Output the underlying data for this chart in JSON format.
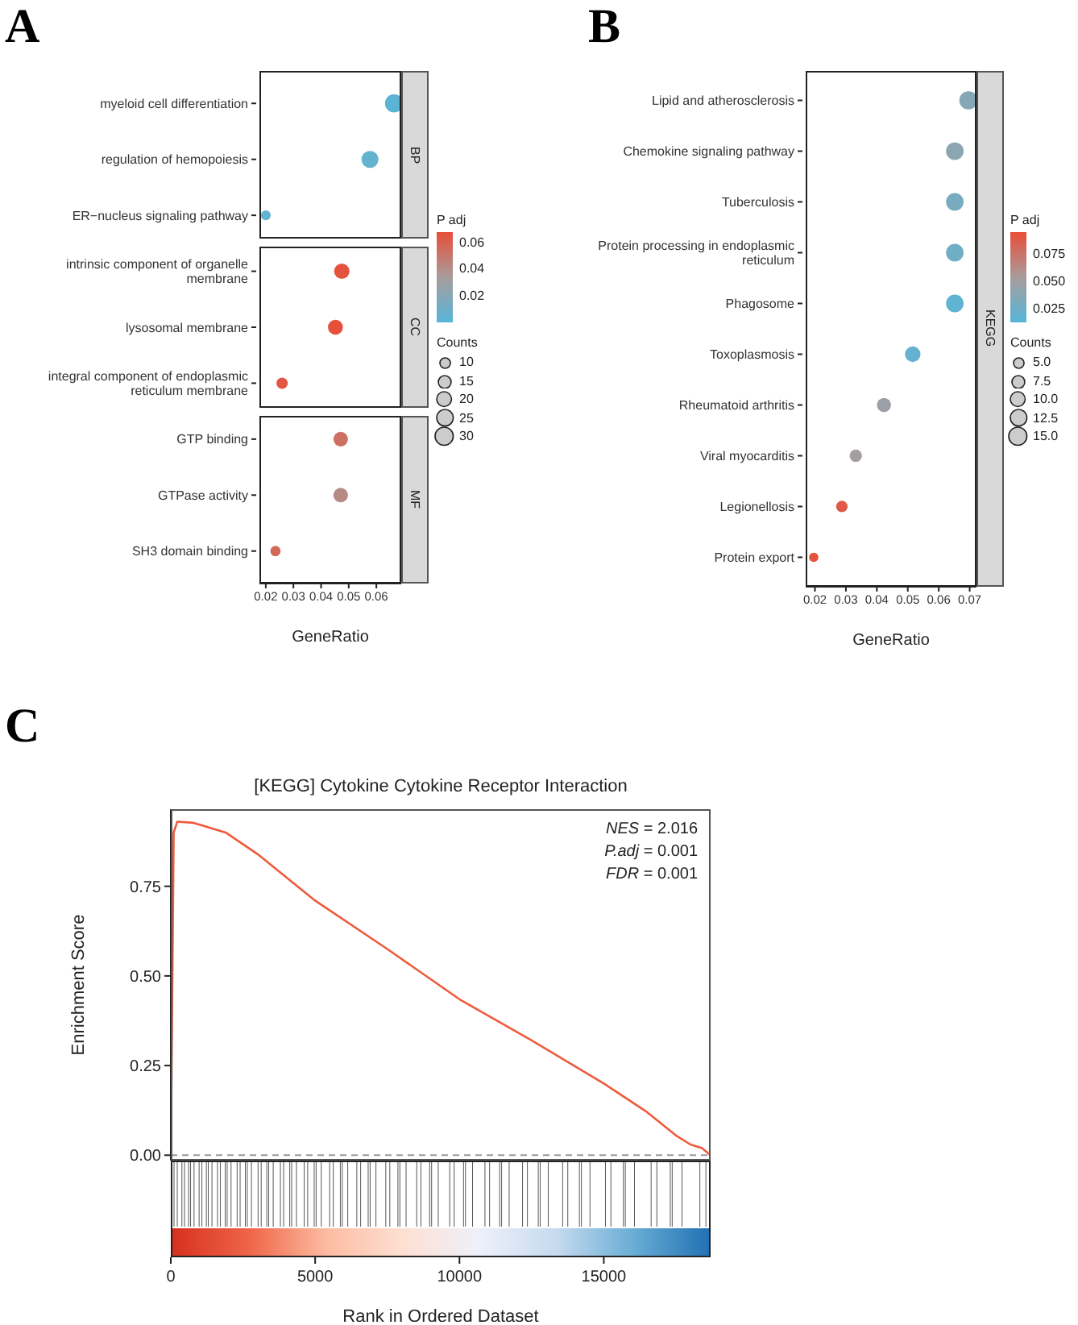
{
  "chart_data": [
    {
      "type": "scatter",
      "orientation": "horizontal",
      "annotations": [
        "A",
        "BP",
        "CC",
        "MF"
      ],
      "categories": [
        "myeloid cell differentiation",
        "regulation of hemopoiesis",
        "ER−nucleus signaling pathway",
        "intrinsic component of organelle membrane",
        "lysosomal membrane",
        "integral component of endoplasmic reticulum membrane",
        "GTP binding",
        "GTPase activity",
        "SH3 domain binding"
      ],
      "values": [
        0.0664,
        0.0577,
        0.02,
        0.0475,
        0.0452,
        0.0259,
        0.0471,
        0.0471,
        0.0235
      ],
      "sizes": [
        31,
        27,
        9,
        22,
        21,
        12,
        20,
        20,
        10
      ],
      "cvalues": [
        0.003,
        0.006,
        0.005,
        0.066,
        0.067,
        0.064,
        0.054,
        0.042,
        0.057
      ],
      "xlim": [
        0.0177,
        0.069
      ],
      "xticks": [
        0.02,
        0.03,
        0.04,
        0.05,
        0.06
      ],
      "xlabel": "GeneRatio",
      "clabel": "P adj",
      "clim": [
        0.001,
        0.068
      ],
      "cticks": [
        0.02,
        0.04,
        0.06
      ],
      "legend_title": "Counts",
      "size_legend": [
        10,
        15,
        20,
        25,
        30
      ]
    },
    {
      "type": "scatter",
      "orientation": "horizontal",
      "title": "KEGG",
      "annotations": [
        "B"
      ],
      "categories": [
        "Lipid and atherosclerosis",
        "Chemokine signaling pathway",
        "Tuberculosis",
        "Protein processing in endoplasmic reticulum",
        "Phagosome",
        "Toxoplasmosis",
        "Rheumatoid arthritis",
        "Viral myocarditis",
        "Legionellosis",
        "Protein export"
      ],
      "values": [
        0.0696,
        0.0652,
        0.0652,
        0.0652,
        0.0652,
        0.0516,
        0.0423,
        0.0332,
        0.0287,
        0.0196
      ],
      "sizes": [
        15,
        14,
        14,
        14,
        14,
        11,
        9,
        7,
        6,
        4
      ],
      "cvalues": [
        0.037,
        0.04,
        0.03,
        0.026,
        0.018,
        0.02,
        0.048,
        0.052,
        0.09,
        0.094
      ],
      "xlim": [
        0.017,
        0.0722
      ],
      "xticks": [
        0.02,
        0.03,
        0.04,
        0.05,
        0.06,
        0.07
      ],
      "xlabel": "GeneRatio",
      "clabel": "P adj",
      "clim": [
        0.013,
        0.096
      ],
      "cticks": [
        0.025,
        {
          "value": 0.05,
          "label": "0.050"
        },
        0.075
      ],
      "legend_title": "Counts",
      "size_legend": [
        {
          "value": 5,
          "label": "5.0"
        },
        7.5,
        {
          "value": 10,
          "label": "10.0"
        },
        12.5,
        {
          "value": 15,
          "label": "15.0"
        }
      ]
    },
    {
      "type": "line",
      "title": "[KEGG] Cytokine Cytokine Receptor Interaction",
      "annotations": [
        "C",
        "NES = 2.016",
        "P.adj = 0.001",
        "FDR = 0.001"
      ],
      "x": [
        0,
        100,
        223,
        780,
        1900,
        3000,
        5000,
        7500,
        10000,
        12500,
        15000,
        16500,
        17500,
        18000,
        18400,
        18700
      ],
      "series": [
        {
          "color": "#ef5a3c",
          "values": [
            0,
            0.9,
            0.93,
            0.927,
            0.9,
            0.84,
            0.71,
            0.575,
            0.435,
            0.32,
            0.2,
            0.12,
            0.055,
            0.03,
            0.02,
            0
          ]
        }
      ],
      "xlim": [
        0,
        18700
      ],
      "xticks": [
        0,
        5000,
        10000,
        15000
      ],
      "ylim": [
        -0.015,
        0.965
      ],
      "yticks": [
        {
          "value": 0,
          "label": "0.00"
        },
        {
          "value": 0.25,
          "label": "0.25"
        },
        {
          "value": 0.5,
          "label": "0.50"
        },
        {
          "value": 0.75,
          "label": "0.75"
        }
      ],
      "xlabel": "Rank in Ordered Dataset",
      "ylabel": "Enrichment Score",
      "ref_lines": [
        {
          "axis": "y",
          "value": 0,
          "color": "#999999",
          "line_style": "dashed"
        }
      ]
    }
  ]
}
